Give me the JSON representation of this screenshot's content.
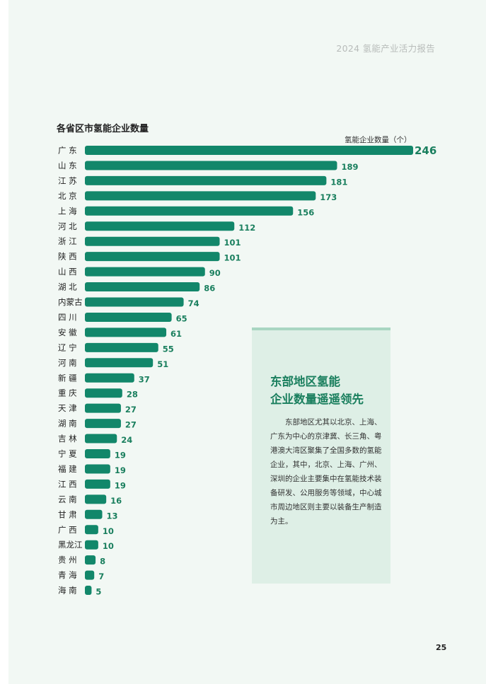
{
  "header": {
    "report_title": "2024 氢能产业活力报告"
  },
  "chart_data": {
    "type": "bar",
    "orientation": "horizontal",
    "title": "各省区市氢能企业数量",
    "xlabel": "氢能企业数量（个）",
    "ylabel": "",
    "categories": [
      "广 东",
      "山 东",
      "江 苏",
      "北 京",
      "上 海",
      "河 北",
      "浙 江",
      "陕 西",
      "山 西",
      "湖 北",
      "内蒙古",
      "四 川",
      "安 徽",
      "辽 宁",
      "河 南",
      "新 疆",
      "重 庆",
      "天 津",
      "湖 南",
      "吉 林",
      "宁 夏",
      "福 建",
      "江 西",
      "云 南",
      "甘 肃",
      "广 西",
      "黑龙江",
      "贵 州",
      "青 海",
      "海 南"
    ],
    "values": [
      246,
      189,
      181,
      173,
      156,
      112,
      101,
      101,
      90,
      86,
      74,
      65,
      61,
      55,
      51,
      37,
      28,
      27,
      27,
      24,
      19,
      19,
      19,
      16,
      13,
      10,
      10,
      8,
      7,
      5
    ],
    "xlim": [
      0,
      246
    ],
    "grid": false,
    "bar_color": "#12876a"
  },
  "callout": {
    "title_line1": "东部地区氢能",
    "title_line2": "企业数量遥遥领先",
    "body": "东部地区尤其以北京、上海、广东为中心的京津冀、长三角、粤港澳大湾区聚集了全国多数的氢能企业，其中，北京、上海、广州、深圳的企业主要集中在氢能技术装备研发、公用服务等领域，中心城市周边地区则主要以装备生产制造为主。"
  },
  "footer": {
    "page_number": "25"
  }
}
